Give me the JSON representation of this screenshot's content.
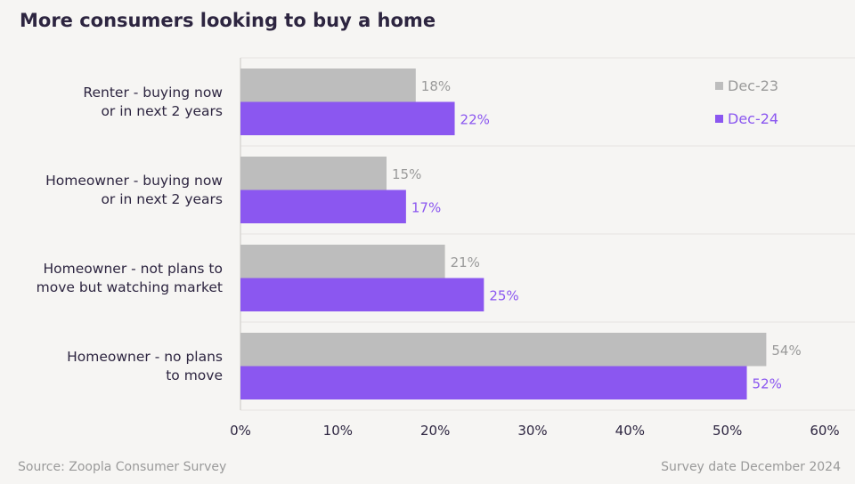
{
  "chart_data": {
    "type": "bar",
    "orientation": "horizontal",
    "title": "More consumers looking to buy a home",
    "categories": [
      [
        "Renter - buying now",
        "or in next 2 years"
      ],
      [
        "Homeowner - buying now",
        "or in next 2 years"
      ],
      [
        "Homeowner - not plans to",
        "move but watching market"
      ],
      [
        "Homeowner - no plans",
        "to move"
      ]
    ],
    "series": [
      {
        "name": "Dec-23",
        "color": "#bdbdbd",
        "values": [
          18,
          15,
          21,
          54
        ],
        "labels": [
          "18%",
          "15%",
          "21%",
          "54%"
        ]
      },
      {
        "name": "Dec-24",
        "color": "#8b57f0",
        "values": [
          22,
          17,
          25,
          52
        ],
        "labels": [
          "22%",
          "17%",
          "25%",
          "52%"
        ]
      }
    ],
    "xlim": [
      0,
      60
    ],
    "xticks": [
      "0%",
      "10%",
      "20%",
      "30%",
      "40%",
      "50%",
      "60%"
    ],
    "legend": "top-right",
    "grid": "horizontal separators between categories"
  },
  "footer": {
    "source": "Source: Zoopla Consumer Survey",
    "date": "Survey date December 2024"
  }
}
